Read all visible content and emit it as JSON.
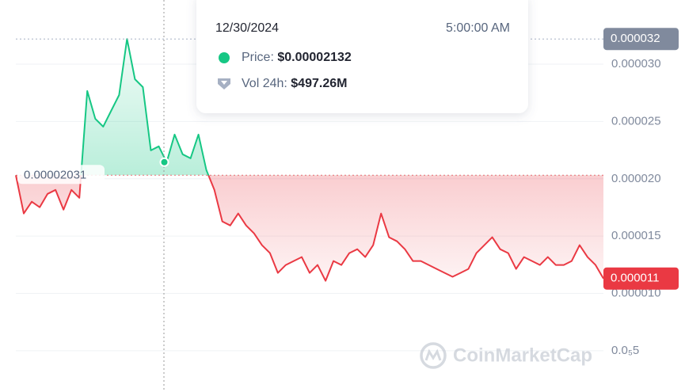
{
  "chart_data": {
    "type": "baseline-line",
    "values": [
      2.031e-05,
      1.697e-05,
      1.8e-05,
      1.752e-05,
      1.869e-05,
      1.903e-05,
      1.731e-05,
      1.903e-05,
      1.834e-05,
      2.766e-05,
      2.524e-05,
      2.455e-05,
      2.593e-05,
      2.731e-05,
      3.22e-05,
      2.869e-05,
      2.8e-05,
      2.248e-05,
      2.283e-05,
      2.145e-05,
      2.386e-05,
      2.214e-05,
      2.179e-05,
      2.386e-05,
      2.076e-05,
      1.903e-05,
      1.628e-05,
      1.593e-05,
      1.697e-05,
      1.593e-05,
      1.524e-05,
      1.421e-05,
      1.352e-05,
      1.179e-05,
      1.248e-05,
      1.283e-05,
      1.317e-05,
      1.179e-05,
      1.248e-05,
      1.11e-05,
      1.283e-05,
      1.248e-05,
      1.352e-05,
      1.386e-05,
      1.317e-05,
      1.421e-05,
      1.697e-05,
      1.49e-05,
      1.455e-05,
      1.386e-05,
      1.283e-05,
      1.283e-05,
      1.248e-05,
      1.214e-05,
      1.179e-05,
      1.145e-05,
      1.179e-05,
      1.214e-05,
      1.352e-05,
      1.421e-05,
      1.49e-05,
      1.386e-05,
      1.352e-05,
      1.214e-05,
      1.317e-05,
      1.283e-05,
      1.248e-05,
      1.317e-05,
      1.248e-05,
      1.248e-05,
      1.283e-05,
      1.421e-05,
      1.317e-05,
      1.248e-05,
      1.13e-05
    ],
    "baseline": 2.031e-05,
    "high": {
      "value": 3.22e-05,
      "label": "0.000032"
    },
    "last": {
      "value": 1.13e-05,
      "label": "0.000011"
    },
    "up_color": "#16c784",
    "down_color": "#ea3943",
    "ylim": [
      1.4e-06,
      3.56e-05
    ],
    "yticks": [
      {
        "value": 5e-06,
        "label": "0.0₅5"
      },
      {
        "value": 1e-05,
        "label": "0.000010"
      },
      {
        "value": 1.5e-05,
        "label": "0.000015"
      },
      {
        "value": 2e-05,
        "label": "0.000020"
      },
      {
        "value": 2.5e-05,
        "label": "0.000025"
      },
      {
        "value": 3e-05,
        "label": "0.000030"
      }
    ],
    "grid": true,
    "tooltip": {
      "date": "12/30/2024",
      "time": "5:00:00 AM",
      "price_label": "Price:",
      "price": "$0.00002132",
      "volume_label": "Vol 24h:",
      "volume": "$497.26M"
    },
    "watermark": "CoinMarketCap"
  }
}
